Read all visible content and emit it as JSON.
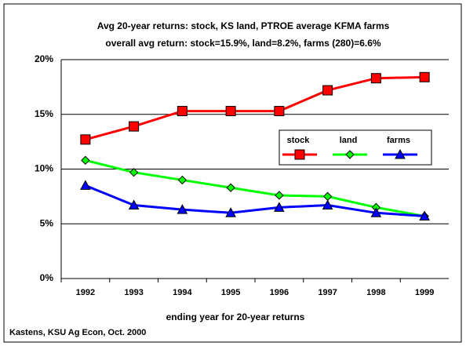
{
  "chart_data": {
    "type": "line",
    "title": "Avg 20-year returns:  stock, KS land, PTROE average KFMA farms",
    "subtitle": "overall avg return:  stock=15.9%, land=8.2%, farms (280)=6.6%",
    "x_label": "ending year for 20-year returns",
    "source": "Kastens, KSU Ag Econ, Oct. 2000",
    "categories": [
      "1992",
      "1993",
      "1994",
      "1995",
      "1996",
      "1997",
      "1998",
      "1999"
    ],
    "series": [
      {
        "name": "stock",
        "color": "#ff0000",
        "marker": "square",
        "values": [
          12.7,
          13.9,
          15.3,
          15.3,
          15.3,
          17.2,
          18.3,
          18.4
        ]
      },
      {
        "name": "land",
        "color": "#00ff00",
        "marker": "diamond",
        "values": [
          10.8,
          9.7,
          9.0,
          8.3,
          7.6,
          7.5,
          6.5,
          5.7
        ]
      },
      {
        "name": "farms",
        "color": "#0000ff",
        "marker": "triangle",
        "values": [
          8.5,
          6.7,
          6.3,
          6.0,
          6.5,
          6.7,
          6.0,
          5.7
        ]
      }
    ],
    "ylim": [
      0,
      20
    ],
    "yticks": [
      {
        "value": 0,
        "label": "0%"
      },
      {
        "value": 5,
        "label": "5%"
      },
      {
        "value": 10,
        "label": "10%"
      },
      {
        "value": 15,
        "label": "15%"
      },
      {
        "value": 20,
        "label": "20%"
      }
    ],
    "grid": true,
    "legend": "upper right"
  }
}
